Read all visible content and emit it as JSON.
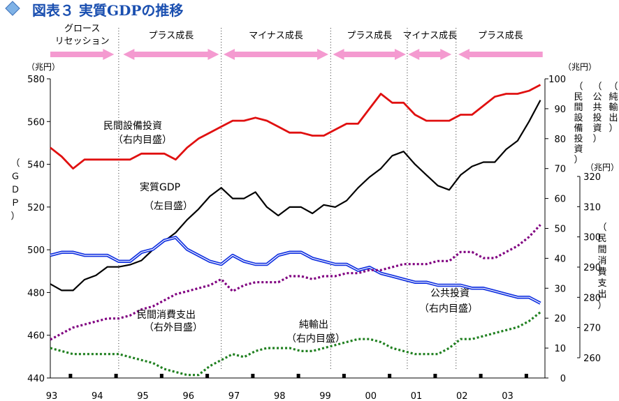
{
  "header": {
    "title": "図表３ 実質GDPの推移"
  },
  "colors": {
    "title": "#1a4fb0",
    "investment": "#e01010",
    "gdp": "#000000",
    "public_inv": "#1030e0",
    "consumption": "#800080",
    "net_export": "#208020",
    "arrow": "#f49ad0"
  },
  "chart_data": {
    "type": "line",
    "phases": [
      {
        "label": "グロース\nリセッション",
        "start": 1993.0,
        "end": 1994.4,
        "dir": "right"
      },
      {
        "label": "プラス成長",
        "start": 1994.6,
        "end": 1996.7,
        "dir": "both"
      },
      {
        "label": "マイナス成長",
        "start": 1996.8,
        "end": 1999.1,
        "dir": "both"
      },
      {
        "label": "プラス成長",
        "start": 1999.2,
        "end": 2000.8,
        "dir": "both"
      },
      {
        "label": "マイナス成長",
        "start": 2000.85,
        "end": 2001.8,
        "dir": "both"
      },
      {
        "label": "プラス成長",
        "start": 2001.95,
        "end": 2003.8,
        "dir": "left"
      }
    ],
    "phase_dividers": [
      1994.5,
      1996.75,
      1999.15,
      2000.83,
      2001.9
    ],
    "x_labels": [
      "93",
      "94",
      "95",
      "96",
      "97",
      "98",
      "99",
      "00",
      "01",
      "02",
      "03"
    ],
    "axes": {
      "left": {
        "label": "（ＧＤＰ）",
        "unit": "（兆円）",
        "ticks": [
          440,
          460,
          480,
          500,
          520,
          540,
          560,
          580
        ],
        "range": [
          440,
          580
        ]
      },
      "right_inner": {
        "label": "（民間設備投資）（公共投資）（純輸出）",
        "unit": "（兆円）",
        "ticks": [
          0,
          10,
          20,
          30,
          40,
          50,
          60,
          70,
          80,
          90,
          100
        ],
        "range": [
          0,
          100
        ]
      },
      "right_outer": {
        "label": "（民間消費支出）",
        "unit": "（兆円）",
        "ticks": [
          260,
          270,
          280,
          290,
          300,
          310,
          320
        ],
        "range": [
          260,
          320
        ]
      }
    },
    "series": [
      {
        "name": "実質GDP",
        "label": "実質GDP",
        "label2": "（左目盛）",
        "axis": "left",
        "style": "solid",
        "color": "#000000",
        "x": [
          1993.0,
          1993.25,
          1993.5,
          1993.75,
          1994.0,
          1994.25,
          1994.5,
          1994.75,
          1995.0,
          1995.25,
          1995.5,
          1995.75,
          1996.0,
          1996.25,
          1996.5,
          1996.75,
          1997.0,
          1997.25,
          1997.5,
          1997.75,
          1998.0,
          1998.25,
          1998.5,
          1998.75,
          1999.0,
          1999.25,
          1999.5,
          1999.75,
          2000.0,
          2000.25,
          2000.5,
          2000.75,
          2001.0,
          2001.25,
          2001.5,
          2001.75,
          2002.0,
          2002.25,
          2002.5,
          2002.75,
          2003.0,
          2003.25,
          2003.5,
          2003.75
        ],
        "values": [
          484,
          481,
          481,
          486,
          488,
          492,
          492,
          493,
          495,
          500,
          504,
          508,
          514,
          519,
          525,
          529,
          524,
          524,
          527,
          520,
          516,
          520,
          520,
          517,
          521,
          520,
          523,
          529,
          534,
          538,
          544,
          546,
          540,
          535,
          530,
          528,
          535,
          539,
          541,
          541,
          547,
          551,
          560,
          570
        ]
      },
      {
        "name": "民間設備投資",
        "label": "民間設備投資",
        "label2": "（右内目盛）",
        "axis": "right_inner",
        "style": "solid",
        "color": "#e01010",
        "x": [
          1993.0,
          1993.25,
          1993.5,
          1993.75,
          1994.0,
          1994.25,
          1994.5,
          1994.75,
          1995.0,
          1995.25,
          1995.5,
          1995.75,
          1996.0,
          1996.25,
          1996.5,
          1996.75,
          1997.0,
          1997.25,
          1997.5,
          1997.75,
          1998.0,
          1998.25,
          1998.5,
          1998.75,
          1999.0,
          1999.25,
          1999.5,
          1999.75,
          2000.0,
          2000.25,
          2000.5,
          2000.75,
          2001.0,
          2001.25,
          2001.5,
          2001.75,
          2002.0,
          2002.25,
          2002.5,
          2002.75,
          2003.0,
          2003.25,
          2003.5,
          2003.75
        ],
        "values": [
          77,
          74,
          70,
          73,
          73,
          73,
          73,
          73,
          75,
          75,
          75,
          73,
          77,
          80,
          82,
          84,
          86,
          86,
          87,
          86,
          84,
          82,
          82,
          81,
          81,
          83,
          85,
          85,
          90,
          95,
          92,
          92,
          88,
          86,
          86,
          86,
          88,
          88,
          91,
          94,
          95,
          95,
          96,
          98
        ]
      },
      {
        "name": "公共投資",
        "label": "公共投資",
        "label2": "（右内目盛）",
        "axis": "right_inner",
        "style": "double",
        "color": "#1030e0",
        "x": [
          1993.0,
          1993.25,
          1993.5,
          1993.75,
          1994.0,
          1994.25,
          1994.5,
          1994.75,
          1995.0,
          1995.25,
          1995.5,
          1995.75,
          1996.0,
          1996.25,
          1996.5,
          1996.75,
          1997.0,
          1997.25,
          1997.5,
          1997.75,
          1998.0,
          1998.25,
          1998.5,
          1998.75,
          1999.0,
          1999.25,
          1999.5,
          1999.75,
          2000.0,
          2000.25,
          2000.5,
          2000.75,
          2001.0,
          2001.25,
          2001.5,
          2001.75,
          2002.0,
          2002.25,
          2002.5,
          2002.75,
          2003.0,
          2003.25,
          2003.5,
          2003.75
        ],
        "values": [
          41,
          42,
          42,
          41,
          41,
          41,
          39,
          39,
          42,
          43,
          46,
          47,
          43,
          41,
          39,
          38,
          41,
          39,
          38,
          38,
          41,
          42,
          42,
          40,
          39,
          38,
          38,
          36,
          37,
          35,
          34,
          33,
          32,
          32,
          31,
          31,
          31,
          30,
          30,
          29,
          28,
          27,
          27,
          25
        ]
      },
      {
        "name": "民間消費支出",
        "label": "民間消費支出",
        "label2": "（右外目盛）",
        "axis": "right_outer",
        "style": "dotted",
        "color": "#800080",
        "x": [
          1993.0,
          1993.25,
          1993.5,
          1993.75,
          1994.0,
          1994.25,
          1994.5,
          1994.75,
          1995.0,
          1995.25,
          1995.5,
          1995.75,
          1996.0,
          1996.25,
          1996.5,
          1996.75,
          1997.0,
          1997.25,
          1997.5,
          1997.75,
          1998.0,
          1998.25,
          1998.5,
          1998.75,
          1999.0,
          1999.25,
          1999.5,
          1999.75,
          2000.0,
          2000.25,
          2000.5,
          2000.75,
          2001.0,
          2001.25,
          2001.5,
          2001.75,
          2002.0,
          2002.25,
          2002.5,
          2002.75,
          2003.0,
          2003.25,
          2003.5,
          2003.75
        ],
        "values": [
          266,
          268,
          270,
          271,
          272,
          273,
          273,
          274,
          276,
          277,
          279,
          281,
          282,
          283,
          284,
          286,
          282,
          284,
          285,
          285,
          285,
          287,
          287,
          286,
          287,
          287,
          288,
          288,
          289,
          289,
          290,
          291,
          291,
          291,
          292,
          292,
          295,
          295,
          293,
          293,
          295,
          297,
          300,
          304
        ]
      },
      {
        "name": "純輸出",
        "label": "純輸出",
        "label2": "（右内目盛）",
        "axis": "right_inner",
        "style": "dotted",
        "color": "#208020",
        "x": [
          1993.0,
          1993.25,
          1993.5,
          1993.75,
          1994.0,
          1994.25,
          1994.5,
          1994.75,
          1995.0,
          1995.25,
          1995.5,
          1995.75,
          1996.0,
          1996.25,
          1996.5,
          1996.75,
          1997.0,
          1997.25,
          1997.5,
          1997.75,
          1998.0,
          1998.25,
          1998.5,
          1998.75,
          1999.0,
          1999.25,
          1999.5,
          1999.75,
          2000.0,
          2000.25,
          2000.5,
          2000.75,
          2001.0,
          2001.25,
          2001.5,
          2001.75,
          2002.0,
          2002.25,
          2002.5,
          2002.75,
          2003.0,
          2003.25,
          2003.5,
          2003.75
        ],
        "values": [
          10,
          9,
          8,
          8,
          8,
          8,
          8,
          7,
          6,
          5,
          3,
          2,
          1,
          1,
          4,
          6,
          8,
          7,
          9,
          10,
          10,
          10,
          9,
          9,
          10,
          11,
          12,
          13,
          13,
          12,
          10,
          9,
          8,
          8,
          8,
          10,
          13,
          13,
          14,
          15,
          16,
          17,
          19,
          22
        ]
      }
    ]
  }
}
